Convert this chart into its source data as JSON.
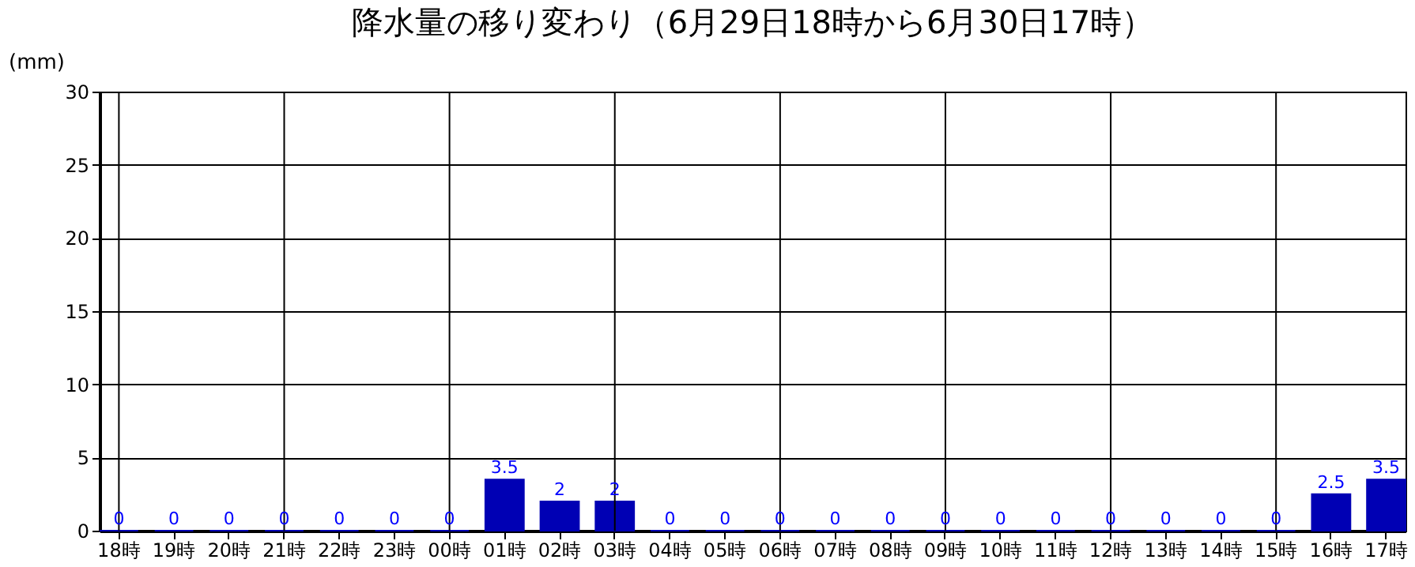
{
  "chart_data": {
    "type": "bar",
    "title": "降水量の移り変わり（6月29日18時から6月30日17時）",
    "ylabel": "(mm)",
    "categories": [
      "18時",
      "19時",
      "20時",
      "21時",
      "22時",
      "23時",
      "00時",
      "01時",
      "02時",
      "03時",
      "04時",
      "05時",
      "06時",
      "07時",
      "08時",
      "09時",
      "10時",
      "11時",
      "12時",
      "13時",
      "14時",
      "15時",
      "16時",
      "17時"
    ],
    "values": [
      0,
      0,
      0,
      0,
      0,
      0,
      0,
      3.5,
      2,
      2,
      0,
      0,
      0,
      0,
      0,
      0,
      0,
      0,
      0,
      0,
      0,
      0,
      2.5,
      3.5
    ],
    "color": "#0000b4",
    "data_labels": true,
    "ylim": [
      0,
      30
    ],
    "yticks": [
      0,
      5,
      10,
      15,
      20,
      25,
      30
    ],
    "grid": "y",
    "ref_lines": [
      {
        "axis": "x",
        "value": "18時"
      },
      {
        "axis": "x",
        "value": "21時"
      },
      {
        "axis": "x",
        "value": "00時"
      },
      {
        "axis": "x",
        "value": "03時"
      },
      {
        "axis": "x",
        "value": "06時"
      },
      {
        "axis": "x",
        "value": "09時"
      },
      {
        "axis": "x",
        "value": "12時"
      },
      {
        "axis": "x",
        "value": "15時"
      }
    ]
  }
}
